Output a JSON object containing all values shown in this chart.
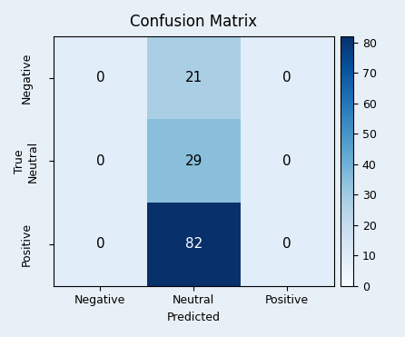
{
  "title": "Confusion Matrix",
  "matrix": [
    [
      0,
      21,
      0
    ],
    [
      0,
      29,
      0
    ],
    [
      0,
      82,
      0
    ]
  ],
  "x_labels": [
    "Negative",
    "Neutral",
    "Positive"
  ],
  "y_labels": [
    "Negative",
    "True\nNeutral",
    "Positive"
  ],
  "xlabel": "Predicted",
  "ylabel": "",
  "cmap": "Blues",
  "vmin": -10,
  "vmax": 82,
  "colorbar_vmin": 0,
  "colorbar_vmax": 82,
  "colorbar_ticks": [
    0,
    10,
    20,
    30,
    40,
    50,
    60,
    70,
    80
  ],
  "text_color_threshold": 50,
  "background_color": "#e8f0f7",
  "figsize": [
    4.46,
    3.71
  ],
  "dpi": 100,
  "title_fontsize": 12,
  "tick_fontsize": 9,
  "annotation_fontsize": 11
}
